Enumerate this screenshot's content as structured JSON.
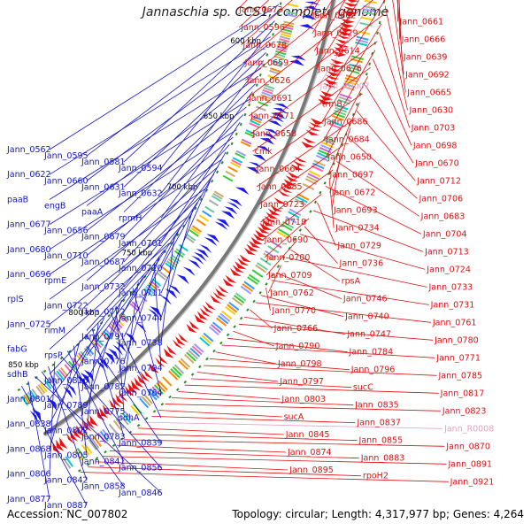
{
  "title": "Jannaschia sp. CCS1, complete genome",
  "footer": {
    "accession": "Accession: NC_007802",
    "summary": "Topology: circular; Length: 4,317,977 bp; Genes: 4,264"
  },
  "colors": {
    "forward_label": "#e01010",
    "reverse_label": "#1414c8",
    "rna_label": "#e8a0c8",
    "backbone": "#777777",
    "forward_genes": "#ee1111",
    "reverse_genes": "#1a1aee"
  },
  "kbp_ticks": [
    "500 kbp",
    "550 kbp",
    "600 kbp",
    "650 kbp",
    "700 kbp",
    "750 kbp",
    "800 kbp",
    "850 kbp"
  ],
  "right_labels": [
    {
      "text": "Jann_0673",
      "col": "r"
    },
    {
      "text": "Jann_0662",
      "col": "r"
    },
    {
      "text": "Jann_0661",
      "col": "r"
    },
    {
      "text": "Jann_0596",
      "col": "r"
    },
    {
      "text": "Jann_0629",
      "col": "r"
    },
    {
      "text": "Jann_0666",
      "col": "r"
    },
    {
      "text": "Jann_0678",
      "col": "r"
    },
    {
      "text": "Jann_0614",
      "col": "r"
    },
    {
      "text": "Jann_0639",
      "col": "r"
    },
    {
      "text": "Jann_0659",
      "col": "r"
    },
    {
      "text": "Jann_0676",
      "col": "r"
    },
    {
      "text": "Jann_0692",
      "col": "r"
    },
    {
      "text": "Jann_0626",
      "col": "r"
    },
    {
      "text": "Jann_R0007",
      "col": "p"
    },
    {
      "text": "Jann_0665",
      "col": "r"
    },
    {
      "text": "Jann_0691",
      "col": "r"
    },
    {
      "text": "trmB",
      "col": "r"
    },
    {
      "text": "Jann_0630",
      "col": "r"
    },
    {
      "text": "Jann_0671",
      "col": "r"
    },
    {
      "text": "Jann_0686",
      "col": "r"
    },
    {
      "text": "Jann_0703",
      "col": "r"
    },
    {
      "text": "Jann_0658",
      "col": "r"
    },
    {
      "text": "Jann_0684",
      "col": "r"
    },
    {
      "text": "Jann_0698",
      "col": "r"
    },
    {
      "text": "cmk",
      "col": "r"
    },
    {
      "text": "Jann_0650",
      "col": "r"
    },
    {
      "text": "Jann_0670",
      "col": "r"
    },
    {
      "text": "Jann_0664",
      "col": "r"
    },
    {
      "text": "Jann_0697",
      "col": "r"
    },
    {
      "text": "Jann_0712",
      "col": "r"
    },
    {
      "text": "Jann_0685",
      "col": "r"
    },
    {
      "text": "Jann_0672",
      "col": "r"
    },
    {
      "text": "Jann_0706",
      "col": "r"
    },
    {
      "text": "Jann_0723",
      "col": "r"
    },
    {
      "text": "Jann_0693",
      "col": "r"
    },
    {
      "text": "Jann_0683",
      "col": "r"
    },
    {
      "text": "Jann_0718",
      "col": "r"
    },
    {
      "text": "Jann_0734",
      "col": "r"
    },
    {
      "text": "Jann_0704",
      "col": "r"
    },
    {
      "text": "Jann_0690",
      "col": "r"
    },
    {
      "text": "Jann_0729",
      "col": "r"
    },
    {
      "text": "Jann_0713",
      "col": "r"
    },
    {
      "text": "Jann_0700",
      "col": "r"
    },
    {
      "text": "Jann_0736",
      "col": "r"
    },
    {
      "text": "Jann_0724",
      "col": "r"
    },
    {
      "text": "Jann_0709",
      "col": "r"
    },
    {
      "text": "rpsA",
      "col": "r"
    },
    {
      "text": "Jann_0733",
      "col": "r"
    },
    {
      "text": "Jann_0762",
      "col": "r"
    },
    {
      "text": "Jann_0746",
      "col": "r"
    },
    {
      "text": "Jann_0731",
      "col": "r"
    },
    {
      "text": "Jann_0770",
      "col": "r"
    },
    {
      "text": "Jann_0740",
      "col": "r"
    },
    {
      "text": "Jann_0761",
      "col": "r"
    },
    {
      "text": "Jann_0766",
      "col": "r"
    },
    {
      "text": "Jann_0747",
      "col": "r"
    },
    {
      "text": "Jann_0780",
      "col": "r"
    },
    {
      "text": "Jann_0790",
      "col": "r"
    },
    {
      "text": "Jann_0784",
      "col": "r"
    },
    {
      "text": "Jann_0771",
      "col": "r"
    },
    {
      "text": "Jann_0798",
      "col": "r"
    },
    {
      "text": "Jann_0796",
      "col": "r"
    },
    {
      "text": "Jann_0785",
      "col": "r"
    },
    {
      "text": "Jann_0797",
      "col": "r"
    },
    {
      "text": "sucC",
      "col": "r"
    },
    {
      "text": "Jann_0817",
      "col": "r"
    },
    {
      "text": "Jann_0803",
      "col": "r"
    },
    {
      "text": "Jann_0835",
      "col": "r"
    },
    {
      "text": "Jann_0823",
      "col": "r"
    },
    {
      "text": "sucA",
      "col": "r"
    },
    {
      "text": "Jann_0837",
      "col": "r"
    },
    {
      "text": "Jann_R0008",
      "col": "p"
    },
    {
      "text": "Jann_0845",
      "col": "r"
    },
    {
      "text": "Jann_0855",
      "col": "r"
    },
    {
      "text": "Jann_0870",
      "col": "r"
    },
    {
      "text": "Jann_0874",
      "col": "r"
    },
    {
      "text": "Jann_0883",
      "col": "r"
    },
    {
      "text": "Jann_0891",
      "col": "r"
    },
    {
      "text": "Jann_0895",
      "col": "r"
    },
    {
      "text": "rpoH2",
      "col": "r"
    },
    {
      "text": "Jann_0921",
      "col": "r"
    }
  ],
  "left_labels": [
    "Jann_0562",
    "Jann_0595",
    "Jann_0581",
    "Jann_0594",
    "Jann_0622",
    "Jann_0660",
    "Jann_0631",
    "Jann_0632",
    "paaB",
    "engB",
    "paaA",
    "rpmH",
    "Jann_0677",
    "Jann_0656",
    "Jann_0679",
    "Jann_0701",
    "Jann_0680",
    "Jann_0710",
    "Jann_0687",
    "Jann_0720",
    "Jann_0696",
    "rpmE",
    "Jann_0732",
    "Jann_0711",
    "rplS",
    "Jann_0722",
    "Jann_0772",
    "Jann_0744",
    "Jann_0725",
    "rimM",
    "Jann_0791",
    "Jann_0738",
    "fabG",
    "rpsP",
    "Jann_0776",
    "Jann_0794",
    "sdhB",
    "Jann_0816",
    "Jann_0782",
    "Jann_0764",
    "Jann_0801",
    "Jann_0789",
    "Jann_0775",
    "sdhA",
    "Jann_0838",
    "Jann_0802",
    "Jann_0783",
    "Jann_0839",
    "Jann_0868",
    "Jann_0805",
    "Jann_0841",
    "Jann_0856",
    "Jann_0806",
    "Jann_0842",
    "Jann_0858",
    "Jann_0846",
    "Jann_0877",
    "Jann_0887"
  ]
}
